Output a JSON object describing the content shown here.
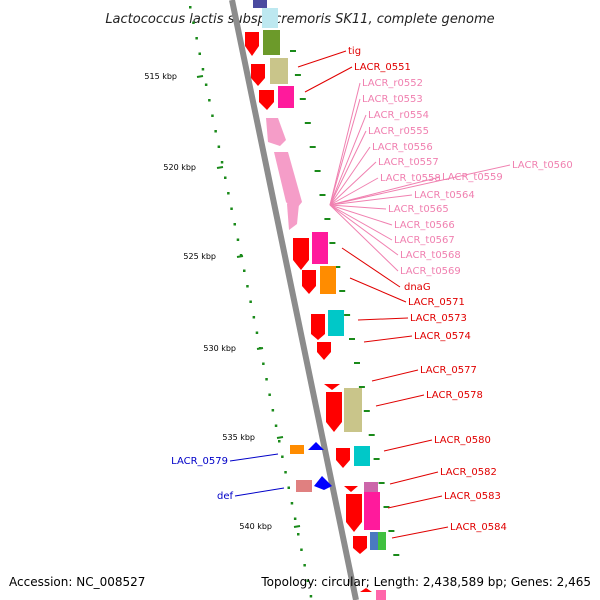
{
  "title": "Lactococcus lactis subsp. cremoris SK11, complete genome",
  "footer": {
    "accession": "Accession: NC_008527",
    "summary": "Topology: circular; Length: 2,438,589 bp; Genes: 2,465"
  },
  "colors": {
    "backbone": "#8c8c8c",
    "tick": "#1a8a1a",
    "cds_label": "#e00000",
    "rna_label": "#f080b0",
    "rev_label": "#0000c8",
    "leader_cds": "#e00000",
    "leader_rna": "#f080b0",
    "leader_rev": "#0000c8"
  },
  "scale_labels": [
    "515 kbp",
    "520 kbp",
    "525 kbp",
    "530 kbp",
    "535 kbp",
    "540 kbp"
  ],
  "gene_labels": [
    {
      "text": "tig",
      "kind": "cds"
    },
    {
      "text": "LACR_0551",
      "kind": "cds"
    },
    {
      "text": "LACR_r0552",
      "kind": "rna"
    },
    {
      "text": "LACR_t0553",
      "kind": "rna"
    },
    {
      "text": "LACR_r0554",
      "kind": "rna"
    },
    {
      "text": "LACR_r0555",
      "kind": "rna"
    },
    {
      "text": "LACR_t0556",
      "kind": "rna"
    },
    {
      "text": "LACR_t0557",
      "kind": "rna"
    },
    {
      "text": "LACR_t0558",
      "kind": "rna"
    },
    {
      "text": "LACR_t0559",
      "kind": "rna"
    },
    {
      "text": "LACR_t0560",
      "kind": "rna"
    },
    {
      "text": "LACR_t0564",
      "kind": "rna"
    },
    {
      "text": "LACR_t0565",
      "kind": "rna"
    },
    {
      "text": "LACR_t0566",
      "kind": "rna"
    },
    {
      "text": "LACR_t0567",
      "kind": "rna"
    },
    {
      "text": "LACR_t0568",
      "kind": "rna"
    },
    {
      "text": "LACR_t0569",
      "kind": "rna"
    },
    {
      "text": "dnaG",
      "kind": "cds"
    },
    {
      "text": "LACR_0571",
      "kind": "cds"
    },
    {
      "text": "LACR_0573",
      "kind": "cds"
    },
    {
      "text": "LACR_0574",
      "kind": "cds"
    },
    {
      "text": "LACR_0577",
      "kind": "cds"
    },
    {
      "text": "LACR_0578",
      "kind": "cds"
    },
    {
      "text": "LACR_0580",
      "kind": "cds"
    },
    {
      "text": "LACR_0582",
      "kind": "cds"
    },
    {
      "text": "LACR_0583",
      "kind": "cds"
    },
    {
      "text": "LACR_0584",
      "kind": "cds"
    },
    {
      "text": "LACR_0579",
      "kind": "rev"
    },
    {
      "text": "def",
      "kind": "rev"
    }
  ]
}
